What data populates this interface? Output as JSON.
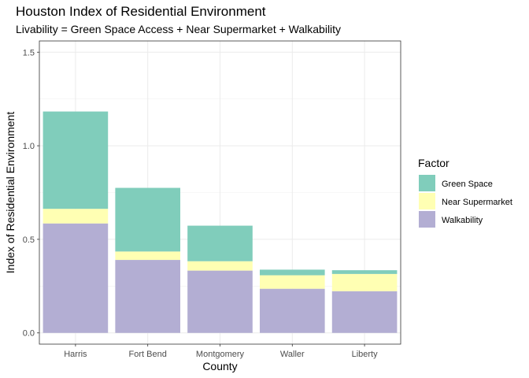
{
  "header": {
    "title": "Houston Index of Residential Environment",
    "subtitle": "Livability = Green Space Access + Near Supermarket + Walkability"
  },
  "chart_data": {
    "type": "bar",
    "stacked": true,
    "title": "Houston Index of Residential Environment",
    "subtitle": "Livability = Green Space Access + Near Supermarket + Walkability",
    "xlabel": "County",
    "ylabel": "Index of Residential Environment",
    "categories": [
      "Harris",
      "Fort Bend",
      "Montgomery",
      "Waller",
      "Liberty"
    ],
    "highlighted_category": "Harris",
    "highlight_color": "#ff0000",
    "series": [
      {
        "name": "Walkability",
        "color": "#b3aed3",
        "values": [
          0.585,
          0.39,
          0.333,
          0.236,
          0.223
        ]
      },
      {
        "name": "Near Supermarket",
        "color": "#ffffb3",
        "values": [
          0.078,
          0.045,
          0.05,
          0.072,
          0.092
        ]
      },
      {
        "name": "Green Space",
        "color": "#80cdbb",
        "values": [
          0.52,
          0.34,
          0.19,
          0.03,
          0.02
        ]
      }
    ],
    "legend": {
      "title": "Factor",
      "position": "right",
      "order": [
        "Green Space",
        "Near Supermarket",
        "Walkability"
      ]
    },
    "ylim": [
      -0.06,
      1.56
    ],
    "yticks": [
      0.0,
      0.5,
      1.0,
      1.5
    ],
    "ytick_labels": [
      "0.0",
      "0.5",
      "1.0",
      "1.5"
    ],
    "grid": true
  }
}
